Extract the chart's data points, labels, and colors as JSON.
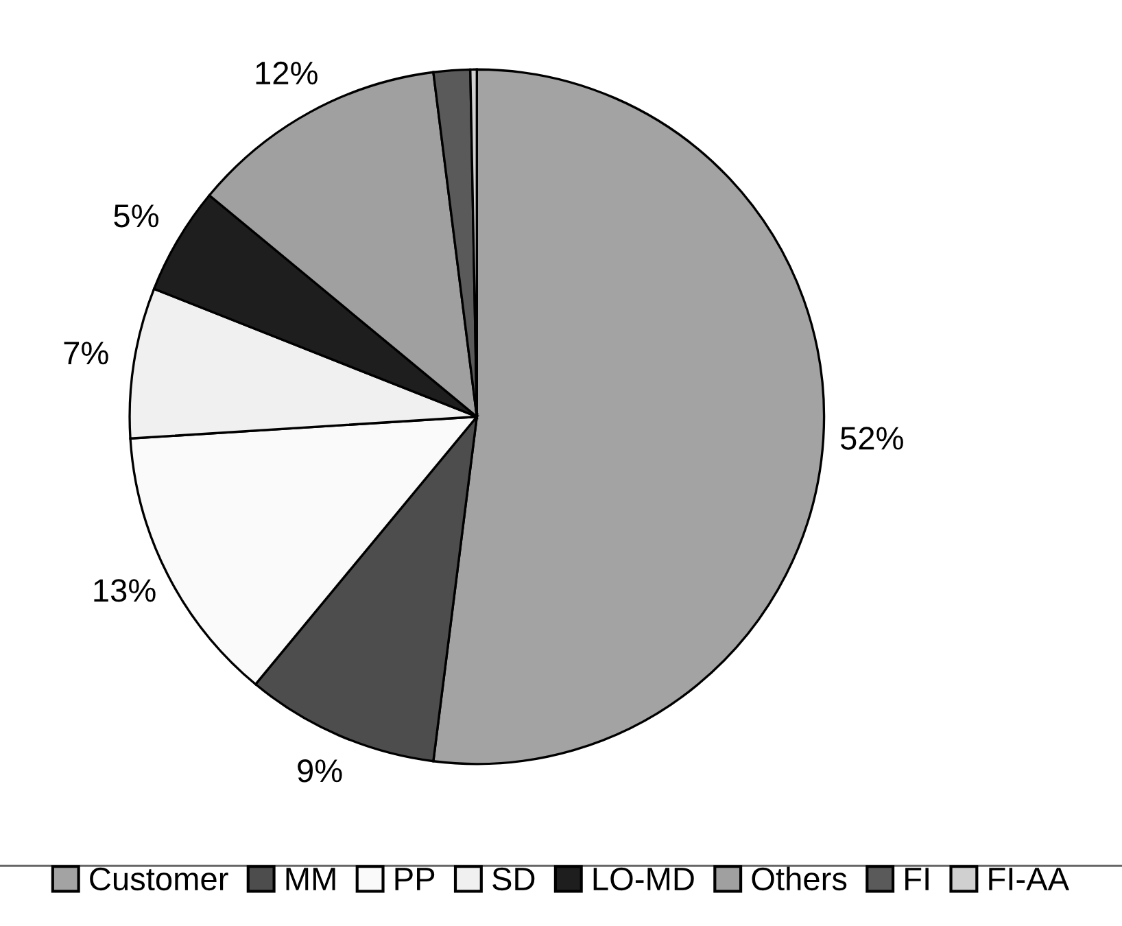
{
  "chart_data": {
    "type": "pie",
    "categories": [
      "Customer",
      "MM",
      "PP",
      "SD",
      "LO-MD",
      "Others",
      "FI",
      "FI-AA"
    ],
    "values": [
      52,
      9,
      13,
      7,
      5,
      12,
      1.7,
      0.3
    ],
    "colors": [
      "#a3a3a3",
      "#4d4d4d",
      "#fafafa",
      "#f0f0f0",
      "#1e1e1e",
      "#a0a0a0",
      "#5a5a5a",
      "#d0d0d0"
    ],
    "value_labels": [
      "52%",
      "9%",
      "13%",
      "7%",
      "5%",
      "12%",
      null,
      null
    ],
    "legend": "bottom"
  }
}
